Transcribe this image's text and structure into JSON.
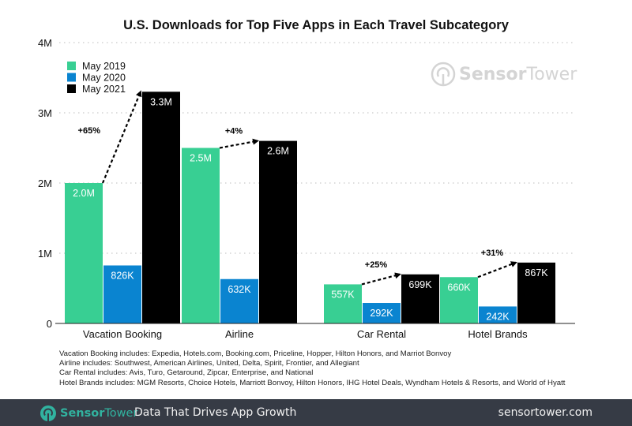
{
  "chart_data": {
    "type": "bar",
    "title": "U.S. Downloads for Top Five Apps in Each Travel Subcategory",
    "xlabel": "",
    "ylabel": "",
    "ylim": [
      0,
      4000000
    ],
    "yticks": [
      {
        "value": 0,
        "label": "0"
      },
      {
        "value": 1000000,
        "label": "1M"
      },
      {
        "value": 2000000,
        "label": "2M"
      },
      {
        "value": 3000000,
        "label": "3M"
      },
      {
        "value": 4000000,
        "label": "4M"
      }
    ],
    "grid": true,
    "legend_position": "top-left",
    "categories": [
      "Vacation Booking",
      "Airline",
      "Car Rental",
      "Hotel Brands"
    ],
    "series": [
      {
        "name": "May 2019",
        "color": "#38cf93",
        "values": [
          2000000,
          2500000,
          557000,
          660000
        ],
        "labels": [
          "2.0M",
          "2.5M",
          "557K",
          "660K"
        ]
      },
      {
        "name": "May 2020",
        "color": "#0a84d0",
        "values": [
          826000,
          632000,
          292000,
          242000
        ],
        "labels": [
          "826K",
          "632K",
          "292K",
          "242K"
        ]
      },
      {
        "name": "May 2021",
        "color": "#000000",
        "values": [
          3300000,
          2600000,
          699000,
          867000
        ],
        "labels": [
          "3.3M",
          "2.6M",
          "699K",
          "867K"
        ]
      }
    ],
    "annotations": [
      {
        "category": "Vacation Booking",
        "from": "May 2019",
        "to": "May 2021",
        "text": "+65%"
      },
      {
        "category": "Airline",
        "from": "May 2019",
        "to": "May 2021",
        "text": "+4%"
      },
      {
        "category": "Car Rental",
        "from": "May 2019",
        "to": "May 2021",
        "text": "+25%"
      },
      {
        "category": "Hotel Brands",
        "from": "May 2019",
        "to": "May 2021",
        "text": "+31%"
      }
    ]
  },
  "watermark": {
    "part1": "Sensor",
    "part2": "Tower"
  },
  "footnotes": [
    "Vacation Booking includes: Expedia, Hotels.com, Booking.com, Priceline, Hopper, Hilton Honors, and Marriot Bonvoy",
    "Airline includes: Southwest, American Airlines, United, Delta, Spirit, Frontier, and Allegiant",
    "Car Rental includes: Avis, Turo, Getaround, Zipcar, Enterprise, and National",
    "Hotel Brands includes: MGM Resorts, Choice Hotels, Marriott Bonvoy, Hilton Honors, IHG Hotel Deals, Wyndham Hotels & Resorts, and World of Hyatt"
  ],
  "footer": {
    "brand_part1": "Sensor",
    "brand_part2": "Tower",
    "tagline": "Data That Drives App Growth",
    "site": "sensortower.com",
    "accent": "#31b3a0"
  }
}
